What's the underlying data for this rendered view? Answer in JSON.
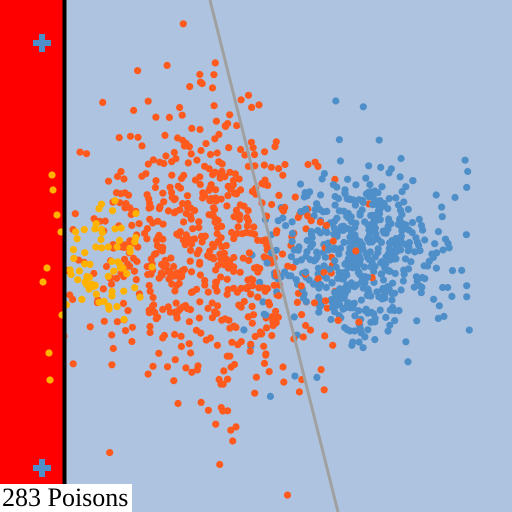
{
  "status": {
    "poison_count": "283",
    "poison_label": "Poisons"
  },
  "colors": {
    "background": "#aec3df",
    "poison_zone": "#ff0000",
    "boundary_wall": "#000000",
    "decision_line": "#a0a0a0",
    "orange_class": "#ff5a1e",
    "blue_class": "#4f8fc9",
    "yellow_class": "#ffb300",
    "cross_marker": "#4f8fc9"
  },
  "icons": [
    "plus-cross-icon",
    "plus-cross-icon"
  ],
  "clusters": [
    {
      "name": "orange",
      "count": 620
    },
    {
      "name": "blue",
      "count": 520
    },
    {
      "name": "yellow",
      "count": 70
    }
  ]
}
